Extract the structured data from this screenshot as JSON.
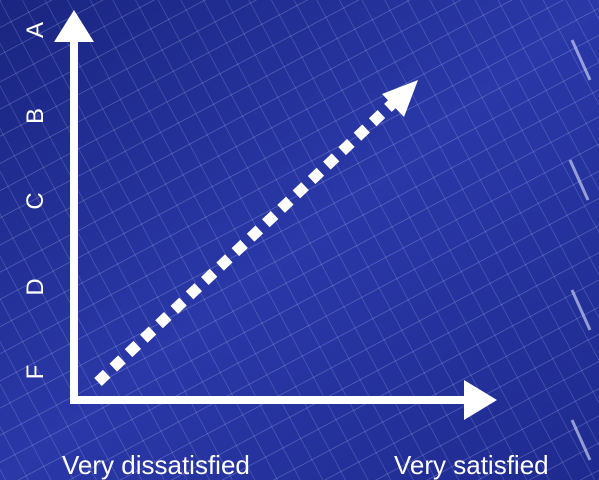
{
  "colors": {
    "background": "#2634a0",
    "grid_line": "#c8d0ff",
    "axis": "#ffffff",
    "dotted_arrow": "#ffffff",
    "text": "#ffffff"
  },
  "y_axis": {
    "labels": [
      "F",
      "D",
      "C",
      "B",
      "A"
    ]
  },
  "x_axis": {
    "left_label": "Very dissatisfied",
    "right_label": "Very satisfied"
  }
}
